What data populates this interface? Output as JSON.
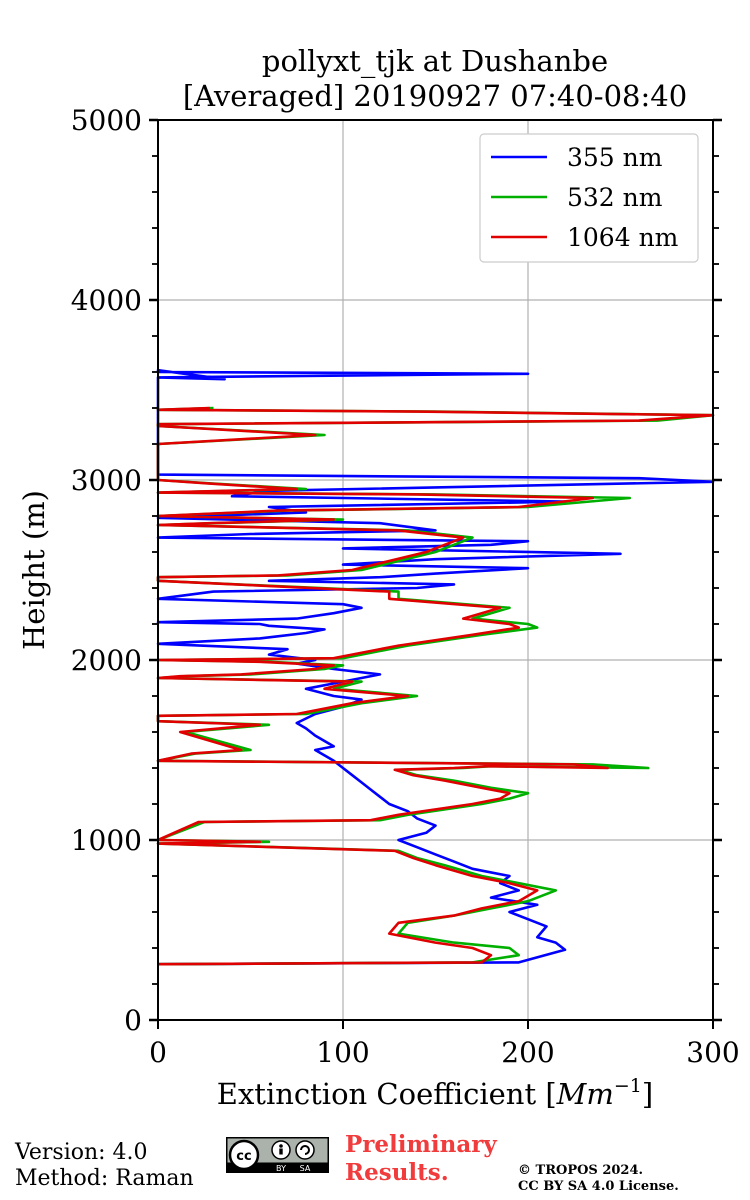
{
  "chart_data": {
    "type": "line",
    "title_line1": "pollyxt_tjk at Dushanbe",
    "title_line2": "[Averaged] 20190927 07:40-08:40",
    "xlabel": "Extinction Coefficient [",
    "xlabel_unit": "Mm",
    "xlabel_exp": "−1",
    "xlabel_close": "]",
    "ylabel": "Height (m)",
    "xlim": [
      0,
      300
    ],
    "ylim": [
      0,
      5000
    ],
    "xticks": [
      0,
      100,
      200,
      300
    ],
    "yticks": [
      0,
      1000,
      2000,
      3000,
      4000,
      5000
    ],
    "grid": true,
    "legend_position": "top-right",
    "series": [
      {
        "name": "355 nm",
        "color": "#0000ff",
        "x": [
          0,
          195,
          220,
          215,
          205,
          210,
          200,
          190,
          205,
          180,
          195,
          185,
          190,
          170,
          160,
          150,
          140,
          130,
          145,
          150,
          140,
          135,
          125,
          120,
          115,
          110,
          105,
          100,
          95,
          90,
          85,
          95,
          90,
          85,
          80,
          75,
          85,
          100,
          110,
          95,
          80,
          100,
          120,
          95,
          75,
          85,
          60,
          70,
          0,
          55,
          80,
          90,
          60,
          55,
          0,
          75,
          95,
          110,
          100,
          0,
          30,
          140,
          160,
          60,
          120,
          150,
          200,
          100,
          150,
          250,
          100,
          180,
          200,
          0,
          50,
          150,
          120,
          0,
          80,
          60,
          220,
          40,
          60,
          300,
          260,
          0,
          0,
          0,
          0,
          200,
          0,
          0,
          36,
          0
        ],
        "y": [
          310,
          320,
          390,
          430,
          460,
          520,
          560,
          600,
          640,
          680,
          720,
          760,
          800,
          840,
          880,
          920,
          960,
          1000,
          1040,
          1080,
          1120,
          1160,
          1200,
          1240,
          1280,
          1320,
          1360,
          1400,
          1440,
          1470,
          1500,
          1520,
          1550,
          1580,
          1620,
          1650,
          1700,
          1740,
          1780,
          1800,
          1840,
          1880,
          1920,
          1950,
          1980,
          2000,
          2030,
          2060,
          2090,
          2120,
          2150,
          2170,
          2190,
          2200,
          2210,
          2230,
          2260,
          2290,
          2310,
          2340,
          2380,
          2400,
          2420,
          2440,
          2460,
          2480,
          2510,
          2530,
          2560,
          2590,
          2620,
          2640,
          2660,
          2680,
          2700,
          2720,
          2760,
          2790,
          2820,
          2850,
          2880,
          2910,
          2940,
          2990,
          3010,
          3030,
          3040,
          3200,
          3570,
          3590,
          3600,
          3610,
          3560,
          3570
        ]
      },
      {
        "name": "532 nm",
        "color": "#00b000",
        "x": [
          0,
          170,
          195,
          190,
          160,
          130,
          135,
          160,
          180,
          200,
          215,
          195,
          175,
          165,
          155,
          140,
          130,
          0,
          60,
          0,
          25,
          120,
          135,
          175,
          190,
          200,
          180,
          160,
          140,
          130,
          165,
          180,
          265,
          235,
          0,
          20,
          50,
          15,
          60,
          0,
          0,
          80,
          100,
          110,
          140,
          95,
          110,
          0,
          15,
          50,
          90,
          100,
          60,
          0,
          100,
          135,
          175,
          205,
          200,
          170,
          180,
          190,
          130,
          130,
          0,
          0,
          70,
          110,
          150,
          170,
          135,
          0,
          30,
          100,
          0,
          70,
          200,
          255,
          150,
          0,
          80,
          30,
          0,
          0,
          0,
          90,
          0,
          0,
          270,
          300,
          150,
          0,
          30
        ],
        "y": [
          310,
          320,
          360,
          400,
          430,
          480,
          540,
          580,
          620,
          660,
          720,
          760,
          800,
          830,
          860,
          900,
          940,
          980,
          990,
          1000,
          1100,
          1110,
          1140,
          1200,
          1230,
          1260,
          1290,
          1330,
          1360,
          1390,
          1400,
          1410,
          1400,
          1420,
          1440,
          1480,
          1500,
          1600,
          1640,
          1660,
          1690,
          1700,
          1740,
          1760,
          1800,
          1840,
          1880,
          1900,
          1910,
          1920,
          1950,
          1970,
          1990,
          2000,
          2010,
          2080,
          2140,
          2180,
          2200,
          2230,
          2260,
          2290,
          2340,
          2380,
          2440,
          2460,
          2470,
          2500,
          2600,
          2680,
          2720,
          2750,
          2760,
          2780,
          2800,
          2830,
          2850,
          2900,
          2920,
          2930,
          2950,
          2980,
          3000,
          3050,
          3200,
          3250,
          3300,
          3310,
          3330,
          3360,
          3380,
          3390,
          3400
        ]
      },
      {
        "name": "1064 nm",
        "color": "#e00000",
        "x": [
          0,
          175,
          180,
          170,
          150,
          125,
          130,
          160,
          175,
          195,
          205,
          190,
          170,
          160,
          150,
          138,
          128,
          0,
          55,
          0,
          22,
          115,
          130,
          170,
          185,
          190,
          175,
          155,
          138,
          128,
          160,
          178,
          243,
          225,
          0,
          18,
          45,
          12,
          55,
          0,
          0,
          75,
          95,
          105,
          135,
          90,
          105,
          0,
          12,
          45,
          85,
          95,
          55,
          0,
          95,
          130,
          170,
          195,
          190,
          165,
          175,
          185,
          125,
          125,
          0,
          0,
          65,
          105,
          145,
          165,
          130,
          0,
          28,
          95,
          0,
          65,
          195,
          235,
          140,
          0,
          75,
          28,
          0,
          0,
          0,
          85,
          0,
          0,
          260,
          300,
          140,
          0,
          28
        ],
        "y": [
          310,
          320,
          360,
          400,
          430,
          480,
          540,
          580,
          620,
          660,
          720,
          760,
          800,
          830,
          860,
          900,
          940,
          980,
          990,
          1000,
          1100,
          1110,
          1140,
          1200,
          1230,
          1260,
          1290,
          1330,
          1360,
          1390,
          1400,
          1410,
          1400,
          1420,
          1440,
          1480,
          1500,
          1600,
          1640,
          1660,
          1690,
          1700,
          1740,
          1760,
          1800,
          1840,
          1880,
          1900,
          1910,
          1920,
          1950,
          1970,
          1990,
          2000,
          2010,
          2080,
          2140,
          2180,
          2200,
          2230,
          2260,
          2290,
          2340,
          2380,
          2440,
          2460,
          2470,
          2500,
          2600,
          2680,
          2720,
          2750,
          2760,
          2780,
          2800,
          2830,
          2850,
          2900,
          2920,
          2930,
          2950,
          2980,
          3000,
          3050,
          3200,
          3250,
          3300,
          3310,
          3330,
          3360,
          3380,
          3390,
          3400
        ]
      }
    ]
  },
  "footer": {
    "version": "Version: 4.0",
    "method": "Method: Raman",
    "preliminary_line1": "Preliminary",
    "preliminary_line2": "Results.",
    "copyright_line1": "© TROPOS 2024.",
    "copyright_line2": "CC BY SA 4.0 License.",
    "license_badge": "cc-by-sa-badge",
    "badge_by": "BY",
    "badge_sa": "SA",
    "badge_cc": "cc"
  }
}
